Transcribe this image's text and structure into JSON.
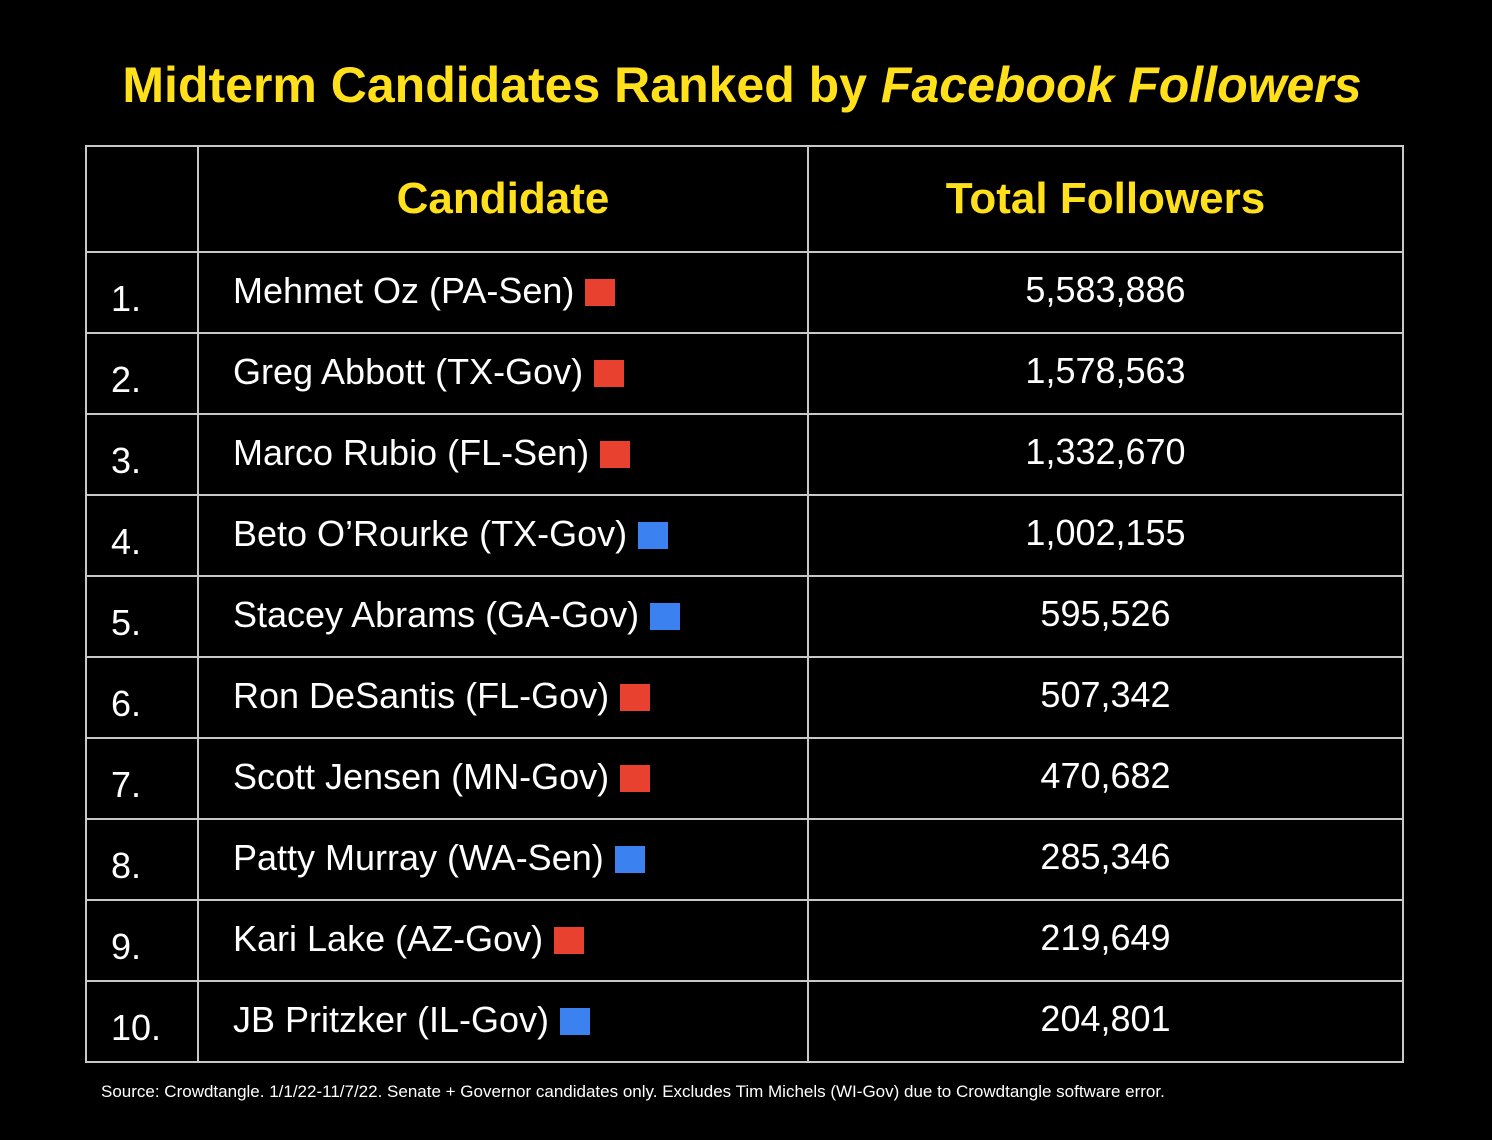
{
  "title": {
    "main": "Midterm Candidates Ranked by ",
    "emphasis": "Facebook Followers"
  },
  "colors": {
    "title": "#FFE01B",
    "republican": "#E8412F",
    "democrat": "#3B82F0",
    "background": "#000000",
    "grid": "#c8c8c8"
  },
  "chart_data": {
    "type": "table",
    "title": "Midterm Candidates Ranked by Facebook Followers",
    "columns": [
      "",
      "Candidate",
      "Total Followers"
    ],
    "rows": [
      {
        "rank": "1.",
        "candidate": "Mehmet Oz (PA-Sen)",
        "party": "republican",
        "followers": "5,583,886"
      },
      {
        "rank": "2.",
        "candidate": "Greg Abbott (TX-Gov)",
        "party": "republican",
        "followers": "1,578,563"
      },
      {
        "rank": "3.",
        "candidate": "Marco Rubio (FL-Sen)",
        "party": "republican",
        "followers": "1,332,670"
      },
      {
        "rank": "4.",
        "candidate": "Beto O’Rourke (TX-Gov)",
        "party": "democrat",
        "followers": "1,002,155"
      },
      {
        "rank": "5.",
        "candidate": "Stacey Abrams (GA-Gov)",
        "party": "democrat",
        "followers": "595,526"
      },
      {
        "rank": "6.",
        "candidate": "Ron DeSantis (FL-Gov)",
        "party": "republican",
        "followers": "507,342"
      },
      {
        "rank": "7.",
        "candidate": "Scott Jensen (MN-Gov)",
        "party": "republican",
        "followers": "470,682"
      },
      {
        "rank": "8.",
        "candidate": "Patty Murray (WA-Sen)",
        "party": "democrat",
        "followers": "285,346"
      },
      {
        "rank": "9.",
        "candidate": "Kari Lake (AZ-Gov)",
        "party": "republican",
        "followers": "219,649"
      },
      {
        "rank": "10.",
        "candidate": "JB Pritzker (IL-Gov)",
        "party": "democrat",
        "followers": "204,801"
      }
    ]
  },
  "source": "Source: Crowdtangle. 1/1/22-11/7/22. Senate + Governor candidates only. Excludes Tim Michels (WI-Gov) due to Crowdtangle software error."
}
